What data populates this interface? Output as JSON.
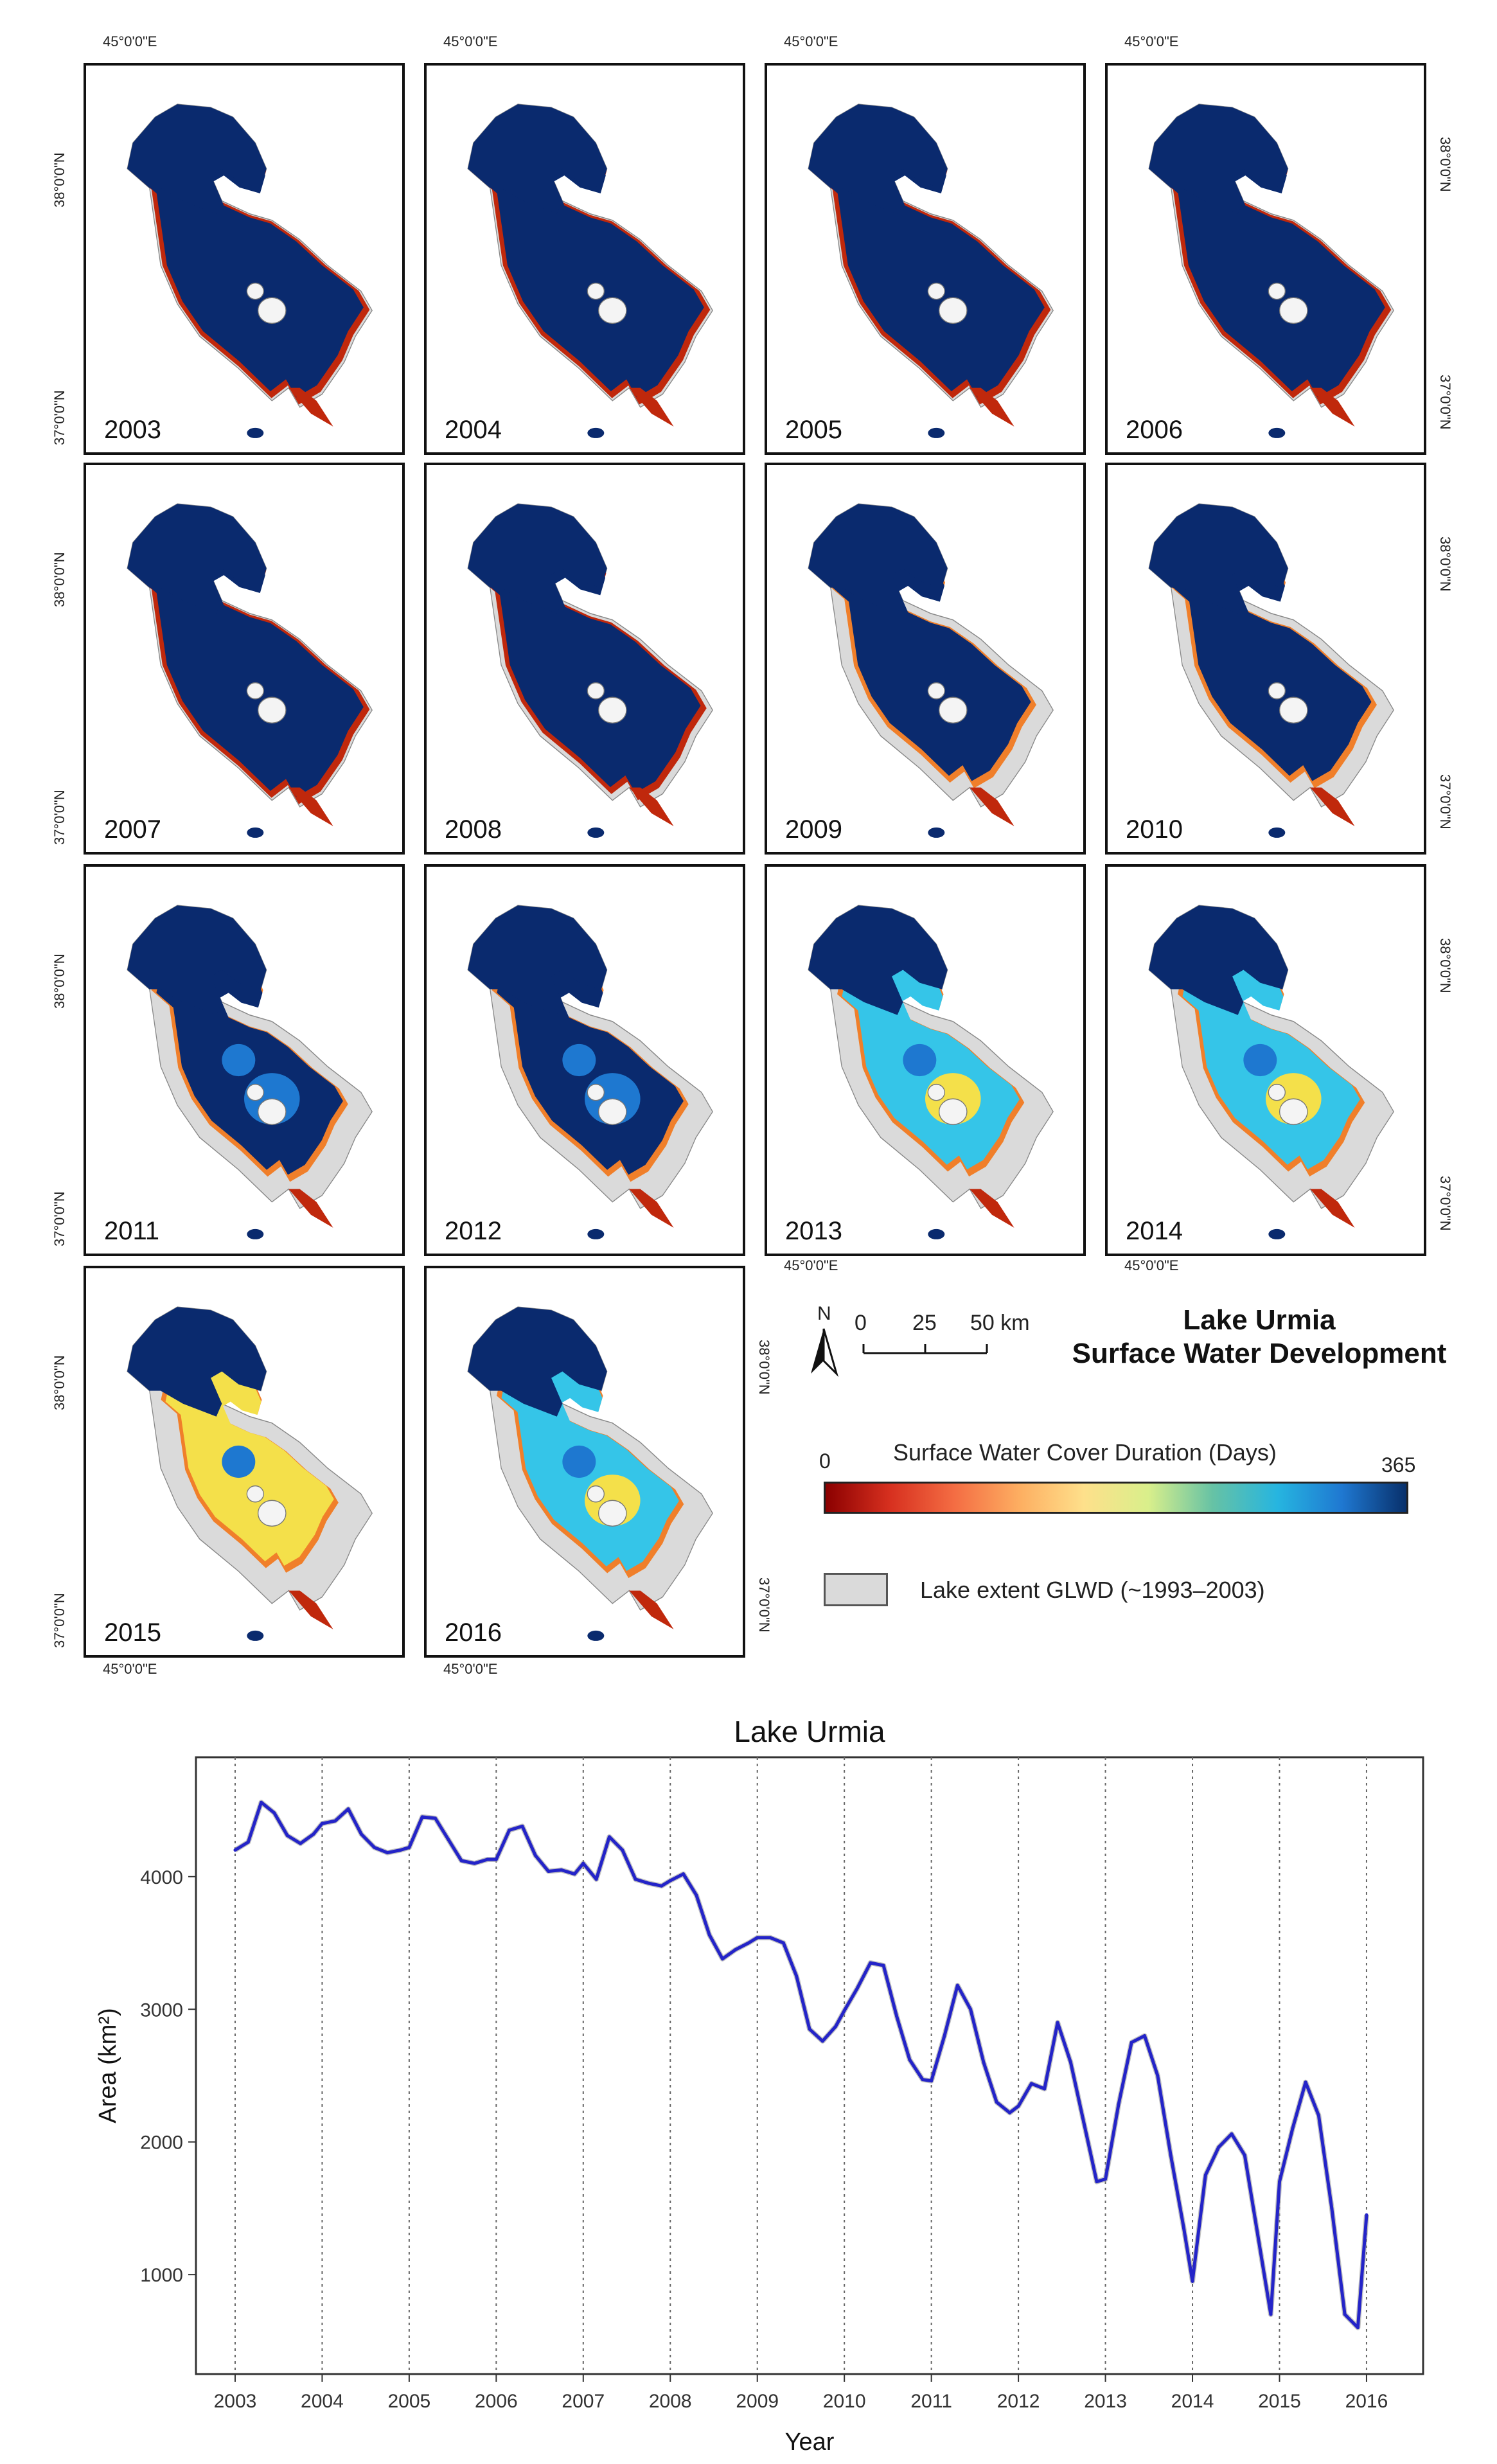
{
  "figure": {
    "panels": [
      {
        "year": "2003",
        "state": 0
      },
      {
        "year": "2004",
        "state": 0
      },
      {
        "year": "2005",
        "state": 0
      },
      {
        "year": "2006",
        "state": 0
      },
      {
        "year": "2007",
        "state": 0
      },
      {
        "year": "2008",
        "state": 1
      },
      {
        "year": "2009",
        "state": 2
      },
      {
        "year": "2010",
        "state": 2
      },
      {
        "year": "2011",
        "state": 3
      },
      {
        "year": "2012",
        "state": 3
      },
      {
        "year": "2013",
        "state": 4
      },
      {
        "year": "2014",
        "state": 4
      },
      {
        "year": "2015",
        "state": 5
      },
      {
        "year": "2016",
        "state": 4
      }
    ],
    "axis_labels": {
      "lon": "45°0'0\"E",
      "lat_north": "38°0'0\"N",
      "lat_south": "37°0'0\"N"
    },
    "scale_bar": {
      "north": "N",
      "t0": "0",
      "t1": "25",
      "t2": "50 km"
    },
    "map_title": {
      "line1": "Lake Urmia",
      "line2": "Surface Water Development"
    },
    "legend": {
      "title": "Surface Water Cover Duration (Days)",
      "min": "0",
      "max": "365",
      "gradient": [
        "#8b0000",
        "#d7301f",
        "#f46d43",
        "#fdae61",
        "#fee08b",
        "#d9ef8b",
        "#66c2a5",
        "#26b5e0",
        "#1f78d1",
        "#08306b"
      ],
      "extent_label": "Lake extent GLWD (~1993–2003)",
      "extent_color": "#dadada"
    },
    "colors": {
      "water": "#0a2a6e",
      "land_ext": "#dadada",
      "red": "#c0280c",
      "orange": "#f07f2a",
      "yellow": "#f4e04a",
      "cyan": "#35c5e8",
      "mid_blue": "#1e78d0"
    }
  },
  "chart_data": {
    "type": "line",
    "title": "Lake Urmia",
    "xlabel": "Year",
    "ylabel": "Area (km²)",
    "xlim": [
      2002.55,
      2016.65
    ],
    "ylim": [
      250,
      4900
    ],
    "xticks": [
      "2003",
      "2004",
      "2005",
      "2006",
      "2007",
      "2008",
      "2009",
      "2010",
      "2011",
      "2012",
      "2013",
      "2014",
      "2015",
      "2016"
    ],
    "yticks": [
      "1000",
      "2000",
      "3000",
      "4000"
    ],
    "series": [
      {
        "name": "Area",
        "color": "#2424c8",
        "x": [
          2003.0,
          2003.15,
          2003.3,
          2003.45,
          2003.6,
          2003.75,
          2003.9,
          2004.0,
          2004.15,
          2004.3,
          2004.45,
          2004.6,
          2004.75,
          2004.9,
          2005.0,
          2005.15,
          2005.3,
          2005.45,
          2005.6,
          2005.75,
          2005.9,
          2006.0,
          2006.15,
          2006.3,
          2006.45,
          2006.6,
          2006.75,
          2006.9,
          2007.0,
          2007.15,
          2007.3,
          2007.45,
          2007.6,
          2007.75,
          2007.9,
          2008.0,
          2008.15,
          2008.3,
          2008.45,
          2008.6,
          2008.75,
          2008.9,
          2009.0,
          2009.15,
          2009.3,
          2009.45,
          2009.6,
          2009.75,
          2009.9,
          2010.0,
          2010.15,
          2010.3,
          2010.45,
          2010.6,
          2010.75,
          2010.9,
          2011.0,
          2011.15,
          2011.3,
          2011.45,
          2011.6,
          2011.75,
          2011.9,
          2012.0,
          2012.15,
          2012.3,
          2012.45,
          2012.6,
          2012.75,
          2012.9,
          2013.0,
          2013.15,
          2013.3,
          2013.45,
          2013.6,
          2013.75,
          2013.9,
          2014.0,
          2014.15,
          2014.3,
          2014.45,
          2014.6,
          2014.75,
          2014.9,
          2015.0,
          2015.15,
          2015.3,
          2015.45,
          2015.6,
          2015.75,
          2015.9,
          2016.0
        ],
        "y": [
          4200,
          4260,
          4560,
          4480,
          4310,
          4250,
          4320,
          4400,
          4420,
          4510,
          4320,
          4220,
          4180,
          4200,
          4220,
          4450,
          4440,
          4280,
          4120,
          4100,
          4130,
          4130,
          4350,
          4380,
          4160,
          4040,
          4050,
          4020,
          4100,
          3980,
          4300,
          4200,
          3980,
          3950,
          3930,
          3970,
          4020,
          3860,
          3560,
          3380,
          3450,
          3500,
          3540,
          3540,
          3500,
          3250,
          2850,
          2760,
          2870,
          2990,
          3160,
          3350,
          3330,
          2950,
          2620,
          2470,
          2460,
          2800,
          3180,
          3000,
          2600,
          2300,
          2220,
          2270,
          2440,
          2400,
          2900,
          2600,
          2150,
          1700,
          1720,
          2280,
          2750,
          2800,
          2500,
          1900,
          1350,
          950,
          1750,
          1960,
          2060,
          1900,
          1300,
          700,
          1700,
          2100,
          2450,
          2200,
          1500,
          700,
          600,
          1450
        ]
      }
    ]
  }
}
